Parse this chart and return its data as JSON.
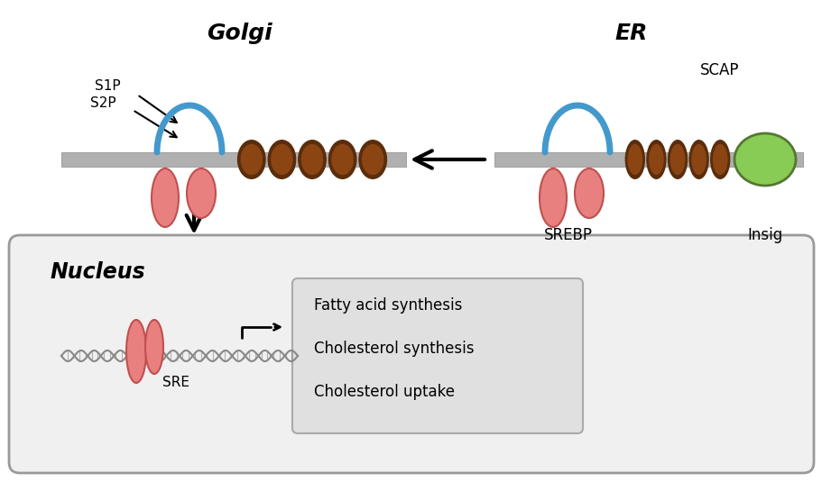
{
  "bg_color": "#ffffff",
  "membrane_color": "#b0b0b0",
  "helix_color": "#8B4513",
  "helix_edge_color": "#5a2d0c",
  "loop_color": "#4499cc",
  "srebp_color": "#e88080",
  "srebp_edge_color": "#c05050",
  "insig_color": "#88cc55",
  "insig_edge_color": "#557733",
  "title_golgi": "Golgi",
  "title_er": "ER",
  "label_s1p": "S1P",
  "label_s2p": "S2P",
  "label_scap": "SCAP",
  "label_srebp": "SREBP",
  "label_insig": "Insig",
  "label_nucleus": "Nucleus",
  "label_sre": "SRE",
  "gene_list": [
    "Fatty acid synthesis",
    "Cholesterol synthesis",
    "Cholesterol uptake"
  ],
  "nucleus_bg": "#f0f0f0",
  "nucleus_edge": "#999999",
  "gene_box_bg": "#e0e0e0",
  "gene_box_edge": "#aaaaaa",
  "arrow_color": "#111111"
}
